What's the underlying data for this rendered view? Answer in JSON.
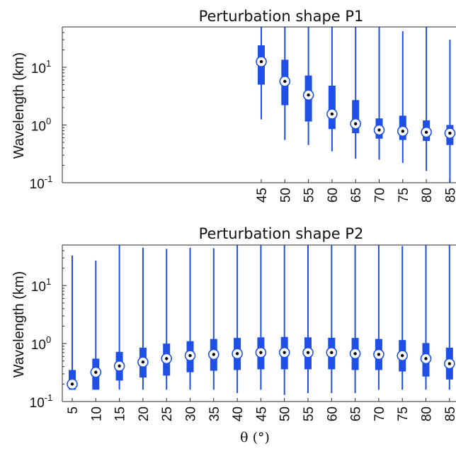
{
  "chart_data": [
    {
      "type": "boxplot",
      "title": "Perturbation shape P1",
      "ylabel": "Wavelength (km)",
      "xlabel": "",
      "yscale": "log",
      "ylim": [
        0.1,
        50
      ],
      "yticks": [
        {
          "value": 0.1,
          "base": "10",
          "exp": "-1"
        },
        {
          "value": 1,
          "base": "10",
          "exp": "0"
        },
        {
          "value": 10,
          "base": "10",
          "exp": "1"
        }
      ],
      "color": "#1f4fe6",
      "categories": [
        "45",
        "50",
        "55",
        "60",
        "65",
        "70",
        "75",
        "80",
        "85"
      ],
      "boxes": [
        {
          "x": "45",
          "min": 1.25,
          "q1": 5.0,
          "median": 12.5,
          "q3": 24.0,
          "max": 50
        },
        {
          "x": "50",
          "min": 0.55,
          "q1": 2.2,
          "median": 5.7,
          "q3": 13.5,
          "max": 50
        },
        {
          "x": "55",
          "min": 0.45,
          "q1": 1.15,
          "median": 3.3,
          "q3": 7.2,
          "max": 50
        },
        {
          "x": "60",
          "min": 0.35,
          "q1": 0.85,
          "median": 1.55,
          "q3": 4.8,
          "max": 50
        },
        {
          "x": "65",
          "min": 0.26,
          "q1": 0.72,
          "median": 1.05,
          "q3": 2.7,
          "max": 50
        },
        {
          "x": "70",
          "min": 0.25,
          "q1": 0.58,
          "median": 0.82,
          "q3": 1.3,
          "max": 50
        },
        {
          "x": "75",
          "min": 0.22,
          "q1": 0.55,
          "median": 0.78,
          "q3": 1.45,
          "max": 42
        },
        {
          "x": "80",
          "min": 0.16,
          "q1": 0.53,
          "median": 0.75,
          "q3": 1.2,
          "max": 50
        },
        {
          "x": "85",
          "min": 0.1,
          "q1": 0.45,
          "median": 0.72,
          "q3": 1.0,
          "max": 30
        }
      ]
    },
    {
      "type": "boxplot",
      "title": "Perturbation shape P2",
      "ylabel": "Wavelength (km)",
      "xlabel": "θ (°)",
      "yscale": "log",
      "ylim": [
        0.1,
        50
      ],
      "yticks": [
        {
          "value": 0.1,
          "base": "10",
          "exp": "-1"
        },
        {
          "value": 1,
          "base": "10",
          "exp": "0"
        },
        {
          "value": 10,
          "base": "10",
          "exp": "1"
        }
      ],
      "color": "#1f4fe6",
      "categories": [
        "5",
        "10",
        "15",
        "20",
        "25",
        "30",
        "35",
        "40",
        "45",
        "50",
        "55",
        "60",
        "65",
        "70",
        "75",
        "80",
        "85"
      ],
      "boxes": [
        {
          "x": "5",
          "min": 0.16,
          "q1": 0.16,
          "median": 0.2,
          "q3": 0.35,
          "max": 33
        },
        {
          "x": "10",
          "min": 0.16,
          "q1": 0.16,
          "median": 0.32,
          "q3": 0.55,
          "max": 27
        },
        {
          "x": "15",
          "min": 0.16,
          "q1": 0.23,
          "median": 0.41,
          "q3": 0.72,
          "max": 50
        },
        {
          "x": "20",
          "min": 0.16,
          "q1": 0.26,
          "median": 0.48,
          "q3": 0.85,
          "max": 45
        },
        {
          "x": "25",
          "min": 0.16,
          "q1": 0.28,
          "median": 0.55,
          "q3": 1.0,
          "max": 43
        },
        {
          "x": "30",
          "min": 0.16,
          "q1": 0.32,
          "median": 0.62,
          "q3": 1.1,
          "max": 45
        },
        {
          "x": "35",
          "min": 0.16,
          "q1": 0.34,
          "median": 0.65,
          "q3": 1.2,
          "max": 44
        },
        {
          "x": "40",
          "min": 0.14,
          "q1": 0.35,
          "median": 0.67,
          "q3": 1.25,
          "max": 50
        },
        {
          "x": "45",
          "min": 0.16,
          "q1": 0.36,
          "median": 0.7,
          "q3": 1.28,
          "max": 50
        },
        {
          "x": "50",
          "min": 0.13,
          "q1": 0.36,
          "median": 0.7,
          "q3": 1.3,
          "max": 50
        },
        {
          "x": "55",
          "min": 0.14,
          "q1": 0.36,
          "median": 0.7,
          "q3": 1.28,
          "max": 50
        },
        {
          "x": "60",
          "min": 0.14,
          "q1": 0.36,
          "median": 0.7,
          "q3": 1.26,
          "max": 50
        },
        {
          "x": "65",
          "min": 0.14,
          "q1": 0.35,
          "median": 0.67,
          "q3": 1.25,
          "max": 50
        },
        {
          "x": "70",
          "min": 0.16,
          "q1": 0.35,
          "median": 0.65,
          "q3": 1.2,
          "max": 50
        },
        {
          "x": "75",
          "min": 0.16,
          "q1": 0.33,
          "median": 0.62,
          "q3": 1.15,
          "max": 48
        },
        {
          "x": "80",
          "min": 0.16,
          "q1": 0.27,
          "median": 0.55,
          "q3": 1.02,
          "max": 50
        },
        {
          "x": "85",
          "min": 0.16,
          "q1": 0.24,
          "median": 0.45,
          "q3": 0.85,
          "max": 50
        }
      ]
    }
  ]
}
